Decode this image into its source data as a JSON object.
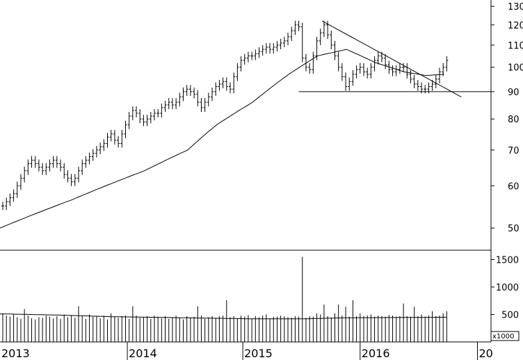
{
  "chart_data": {
    "type": "bar",
    "price_panel": {
      "y_scale": "log",
      "ylim": [
        46,
        132
      ],
      "yticks": [
        50,
        60,
        70,
        80,
        90,
        100,
        110,
        120,
        130
      ],
      "weekly_close": [
        55,
        56,
        57,
        58,
        60,
        62,
        64,
        66,
        67,
        66,
        65,
        64,
        65,
        66,
        67,
        66,
        65,
        63,
        62,
        61,
        62,
        64,
        66,
        67,
        68,
        69,
        70,
        71,
        72,
        74,
        75,
        73,
        72,
        75,
        78,
        81,
        83,
        82,
        80,
        79,
        80,
        81,
        82,
        82,
        84,
        85,
        86,
        85,
        86,
        88,
        90,
        91,
        90,
        89,
        86,
        84,
        86,
        88,
        90,
        92,
        93,
        94,
        92,
        91,
        96,
        100,
        103,
        104,
        105,
        105,
        106,
        107,
        108,
        109,
        108,
        109,
        110,
        111,
        112,
        114,
        117,
        120,
        119,
        104,
        100,
        99,
        105,
        112,
        116,
        120,
        115,
        110,
        105,
        100,
        96,
        92,
        94,
        97,
        99,
        100,
        98,
        97,
        100,
        103,
        105,
        104,
        101,
        99,
        98,
        99,
        100,
        100,
        97,
        95,
        93,
        92,
        91,
        91,
        92,
        93,
        95,
        98,
        100,
        103
      ],
      "moving_average": {
        "anchors_week": [
          0,
          20,
          40,
          52,
          60,
          70,
          80,
          88,
          96,
          104,
          112,
          118,
          123
        ],
        "anchors_value": [
          50,
          56.5,
          64,
          70,
          78,
          86,
          97,
          105,
          108,
          102,
          98,
          96.5,
          97
        ]
      },
      "support_line": {
        "x_week": [
          82,
          123
        ],
        "value": 90
      },
      "trendline": {
        "x_week": [
          88.5,
          127
        ],
        "value": [
          122,
          88
        ]
      }
    },
    "volume_panel": {
      "unit_label": "x1000",
      "ylim": [
        0,
        1620
      ],
      "yticks": [
        500,
        1000,
        1500
      ],
      "weekly_volume": [
        520,
        480,
        460,
        500,
        450,
        420,
        600,
        480,
        430,
        410,
        450,
        440,
        480,
        460,
        430,
        470,
        420,
        500,
        450,
        480,
        440,
        650,
        480,
        420,
        500,
        460,
        470,
        430,
        480,
        410,
        520,
        460,
        440,
        470,
        480,
        420,
        650,
        480,
        440,
        450,
        470,
        420,
        480,
        460,
        430,
        470,
        420,
        450,
        480,
        440,
        410,
        470,
        440,
        460,
        650,
        480,
        420,
        450,
        470,
        440,
        470,
        480,
        760,
        450,
        470,
        430,
        480,
        460,
        490,
        420,
        470,
        450,
        480,
        500,
        430,
        460,
        460,
        480,
        470,
        450,
        440,
        470,
        460,
        1550,
        440,
        470,
        460,
        520,
        500,
        680,
        470,
        440,
        520,
        680,
        480,
        640,
        460,
        760,
        470,
        520,
        470,
        480,
        500,
        460,
        480,
        470,
        460,
        490,
        480,
        460,
        470,
        700,
        470,
        460,
        640,
        470,
        500,
        460,
        480,
        560,
        470,
        480,
        520,
        560
      ],
      "volume_ma": {
        "anchors_week": [
          0,
          15,
          30,
          50,
          70,
          83,
          95,
          110,
          123
        ],
        "anchors_value": [
          510,
          490,
          460,
          440,
          420,
          420,
          440,
          445,
          450
        ]
      }
    },
    "x_axis": {
      "start_week": 0,
      "weeks_per_year": 52,
      "year_labels": [
        {
          "label": "2013",
          "week": 0
        },
        {
          "label": "2014",
          "week": 34.5
        },
        {
          "label": "2015",
          "week": 66.5
        },
        {
          "label": "2016",
          "week": 99
        },
        {
          "label": "20",
          "week": 131.5
        }
      ]
    }
  }
}
